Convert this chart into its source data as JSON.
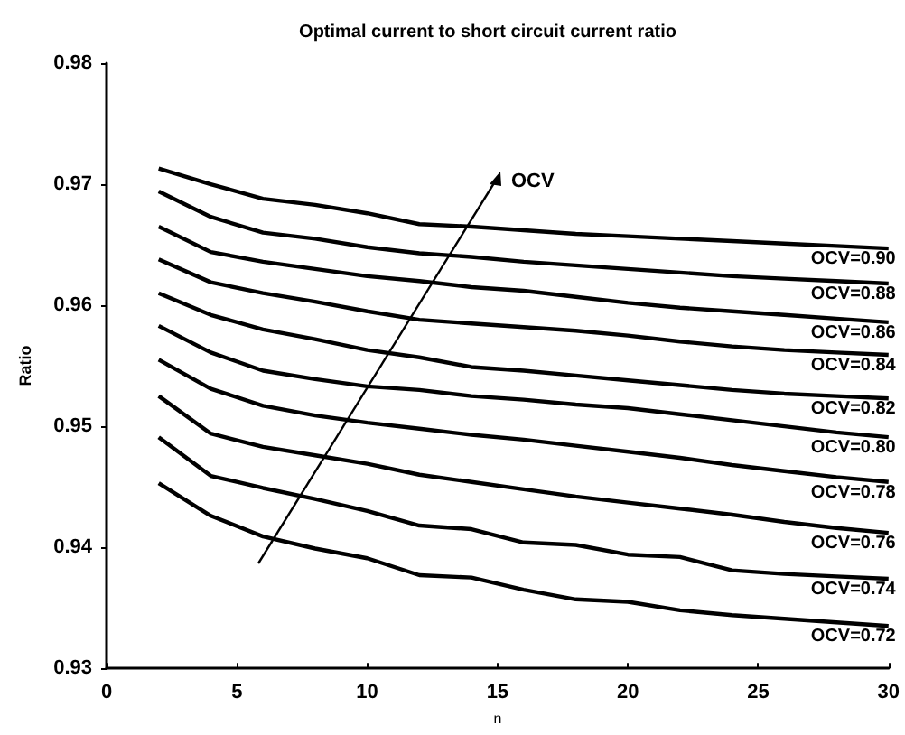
{
  "chart_data": {
    "type": "line",
    "title": "Optimal current to short circuit current ratio",
    "xlabel": "n",
    "ylabel": "Ratio",
    "x": [
      2,
      4,
      6,
      8,
      10,
      12,
      14,
      16,
      18,
      20,
      22,
      24,
      26,
      28,
      30
    ],
    "series": [
      {
        "name": "OCV=0.90",
        "color": "#000000",
        "values": [
          0.9713,
          0.97,
          0.9688,
          0.9683,
          0.9676,
          0.9667,
          0.9665,
          0.9662,
          0.9659,
          0.9657,
          0.9655,
          0.9653,
          0.9651,
          0.9649,
          0.9647
        ]
      },
      {
        "name": "OCV=0.88",
        "color": "#000000",
        "values": [
          0.9694,
          0.9673,
          0.966,
          0.9655,
          0.9648,
          0.9643,
          0.964,
          0.9636,
          0.9633,
          0.963,
          0.9627,
          0.9624,
          0.9622,
          0.962,
          0.9618
        ]
      },
      {
        "name": "OCV=0.86",
        "color": "#000000",
        "values": [
          0.9665,
          0.9644,
          0.9636,
          0.963,
          0.9624,
          0.962,
          0.9615,
          0.9612,
          0.9607,
          0.9602,
          0.9598,
          0.9595,
          0.9592,
          0.9589,
          0.9586
        ]
      },
      {
        "name": "OCV=0.84",
        "color": "#000000",
        "values": [
          0.9638,
          0.9619,
          0.961,
          0.9603,
          0.9595,
          0.9588,
          0.9585,
          0.9582,
          0.9579,
          0.9575,
          0.957,
          0.9566,
          0.9563,
          0.9561,
          0.9559
        ]
      },
      {
        "name": "OCV=0.82",
        "color": "#000000",
        "values": [
          0.961,
          0.9592,
          0.958,
          0.9572,
          0.9563,
          0.9557,
          0.9549,
          0.9546,
          0.9542,
          0.9538,
          0.9534,
          0.953,
          0.9527,
          0.9525,
          0.9523
        ]
      },
      {
        "name": "OCV=0.80",
        "color": "#000000",
        "values": [
          0.9583,
          0.9561,
          0.9546,
          0.9539,
          0.9533,
          0.953,
          0.9525,
          0.9522,
          0.9518,
          0.9515,
          0.951,
          0.9505,
          0.95,
          0.9495,
          0.9491
        ]
      },
      {
        "name": "OCV=0.78",
        "color": "#000000",
        "values": [
          0.9555,
          0.9531,
          0.9517,
          0.9509,
          0.9503,
          0.9498,
          0.9493,
          0.9489,
          0.9484,
          0.9479,
          0.9474,
          0.9468,
          0.9463,
          0.9458,
          0.9454
        ]
      },
      {
        "name": "OCV=0.76",
        "color": "#000000",
        "values": [
          0.9525,
          0.9494,
          0.9483,
          0.9476,
          0.9469,
          0.946,
          0.9454,
          0.9448,
          0.9442,
          0.9437,
          0.9432,
          0.9427,
          0.9421,
          0.9416,
          0.9412
        ]
      },
      {
        "name": "OCV=0.74",
        "color": "#000000",
        "values": [
          0.9491,
          0.9459,
          0.9449,
          0.944,
          0.943,
          0.9418,
          0.9415,
          0.9404,
          0.9402,
          0.9394,
          0.9392,
          0.9381,
          0.9378,
          0.9376,
          0.9374
        ]
      },
      {
        "name": "OCV=0.72",
        "color": "#000000",
        "values": [
          0.9453,
          0.9426,
          0.9409,
          0.9399,
          0.9391,
          0.9377,
          0.9375,
          0.9365,
          0.9357,
          0.9355,
          0.9348,
          0.9344,
          0.9341,
          0.9338,
          0.9335
        ]
      }
    ],
    "annotations": [
      "OCV"
    ],
    "xlim": [
      0,
      30
    ],
    "xticks": [
      0,
      5,
      10,
      15,
      20,
      25,
      30
    ],
    "ylim": [
      0.93,
      0.98
    ],
    "yticks": [
      0.93,
      0.94,
      0.95,
      0.96,
      0.97,
      0.98
    ],
    "grid": false,
    "legend": false,
    "marker": "none",
    "line_style": "solid"
  }
}
